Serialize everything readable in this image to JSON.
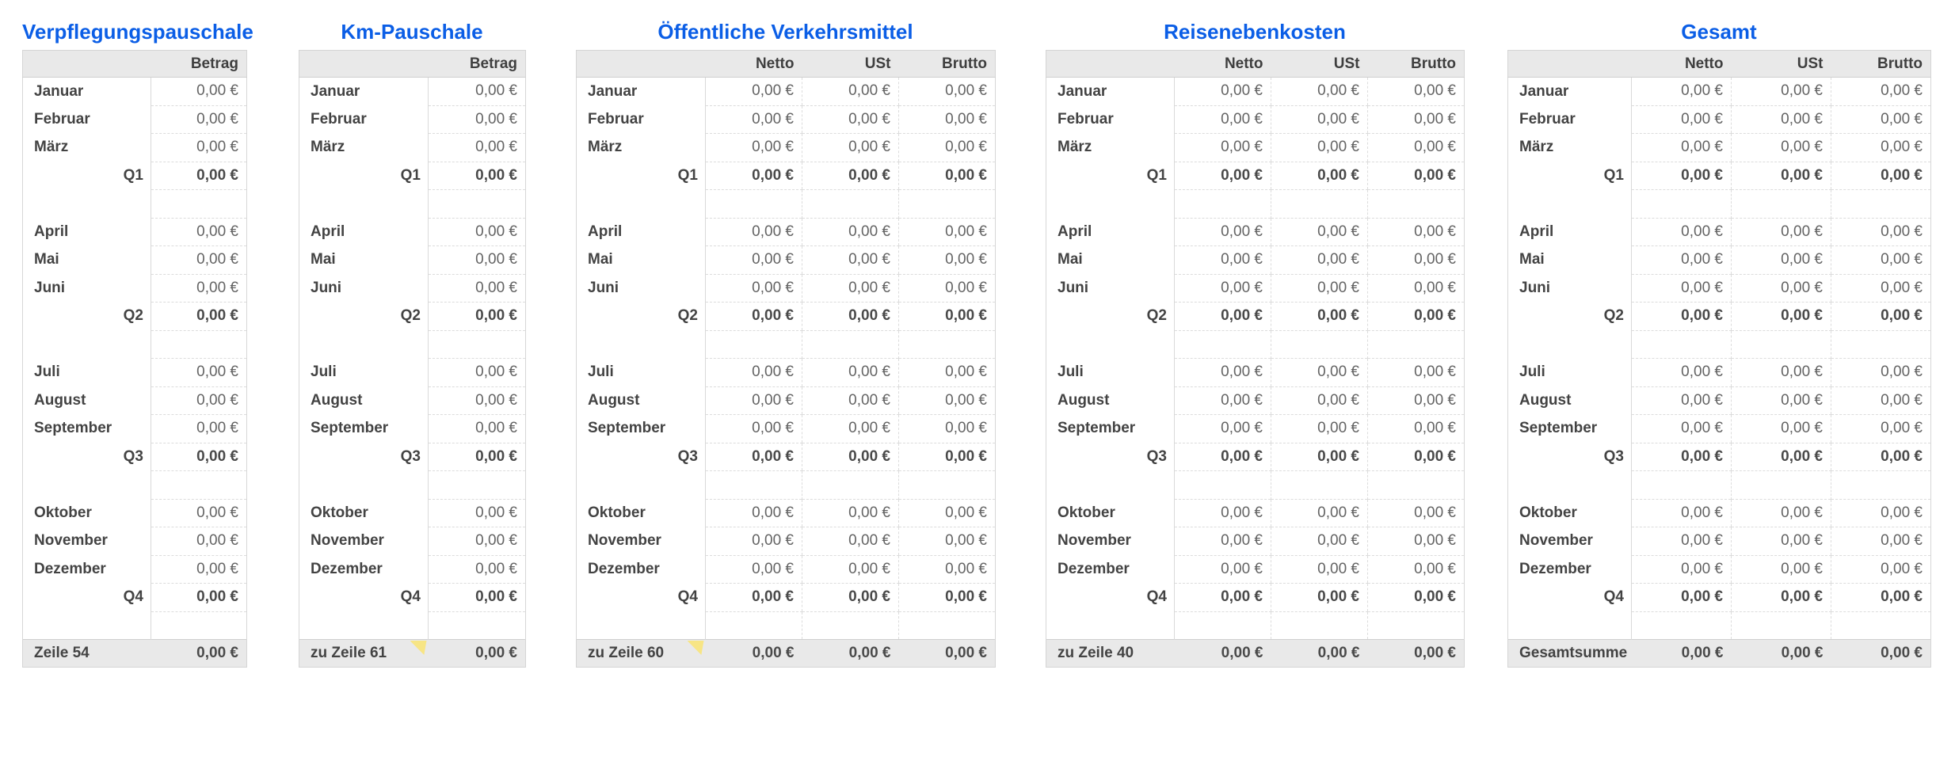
{
  "zero_value": "0,00 €",
  "styles": {
    "title_color": "#0b5ee6",
    "header_bg": "#e9e9e9",
    "footer_bg": "#e9e9e9",
    "comment_marker_color": "#f7e585",
    "month_text_color": "#434343",
    "value_text_color": "#646464"
  },
  "rows": [
    {
      "label": "Januar",
      "type": "month"
    },
    {
      "label": "Februar",
      "type": "month"
    },
    {
      "label": "März",
      "type": "month"
    },
    {
      "label": "Q1",
      "type": "quarter"
    },
    {
      "label": "",
      "type": "spacer"
    },
    {
      "label": "April",
      "type": "month"
    },
    {
      "label": "Mai",
      "type": "month"
    },
    {
      "label": "Juni",
      "type": "month"
    },
    {
      "label": "Q2",
      "type": "quarter"
    },
    {
      "label": "",
      "type": "spacer"
    },
    {
      "label": "Juli",
      "type": "month"
    },
    {
      "label": "August",
      "type": "month"
    },
    {
      "label": "September",
      "type": "month"
    },
    {
      "label": "Q3",
      "type": "quarter"
    },
    {
      "label": "",
      "type": "spacer"
    },
    {
      "label": "Oktober",
      "type": "month"
    },
    {
      "label": "November",
      "type": "month"
    },
    {
      "label": "Dezember",
      "type": "month"
    },
    {
      "label": "Q4",
      "type": "quarter"
    },
    {
      "label": "",
      "type": "spacer"
    }
  ],
  "tables": [
    {
      "id": "verpflegungspauschale",
      "title": "Verpflegungspauschale",
      "columns": [
        "Betrag"
      ],
      "cell_value": "0,00 €",
      "footer": {
        "label": "Zeile 54",
        "values": [
          "0,00 €"
        ],
        "comment_marker": false
      }
    },
    {
      "id": "km-pauschale",
      "title": "Km-Pauschale",
      "columns": [
        "Betrag"
      ],
      "cell_value": "0,00 €",
      "footer": {
        "label": "zu Zeile 61",
        "values": [
          "0,00 €"
        ],
        "comment_marker": true
      }
    },
    {
      "id": "oeffentliche-verkehrsmittel",
      "title": "Öffentliche Verkehrsmittel",
      "columns": [
        "Netto",
        "USt",
        "Brutto"
      ],
      "cell_value": "0,00 €",
      "footer": {
        "label": "zu Zeile 60",
        "values": [
          "0,00 €",
          "0,00 €",
          "0,00 €"
        ],
        "comment_marker": true
      }
    },
    {
      "id": "reisenebenkosten",
      "title": "Reisenebenkosten",
      "columns": [
        "Netto",
        "USt",
        "Brutto"
      ],
      "cell_value": "0,00 €",
      "footer": {
        "label": "zu Zeile 40",
        "values": [
          "0,00 €",
          "0,00 €",
          "0,00 €"
        ],
        "comment_marker": false
      }
    },
    {
      "id": "gesamt",
      "title": "Gesamt",
      "columns": [
        "Netto",
        "USt",
        "Brutto"
      ],
      "cell_value": "0,00 €",
      "footer": {
        "label": "Gesamtsumme",
        "values": [
          "0,00 €",
          "0,00 €",
          "0,00 €"
        ],
        "comment_marker": false
      }
    }
  ]
}
